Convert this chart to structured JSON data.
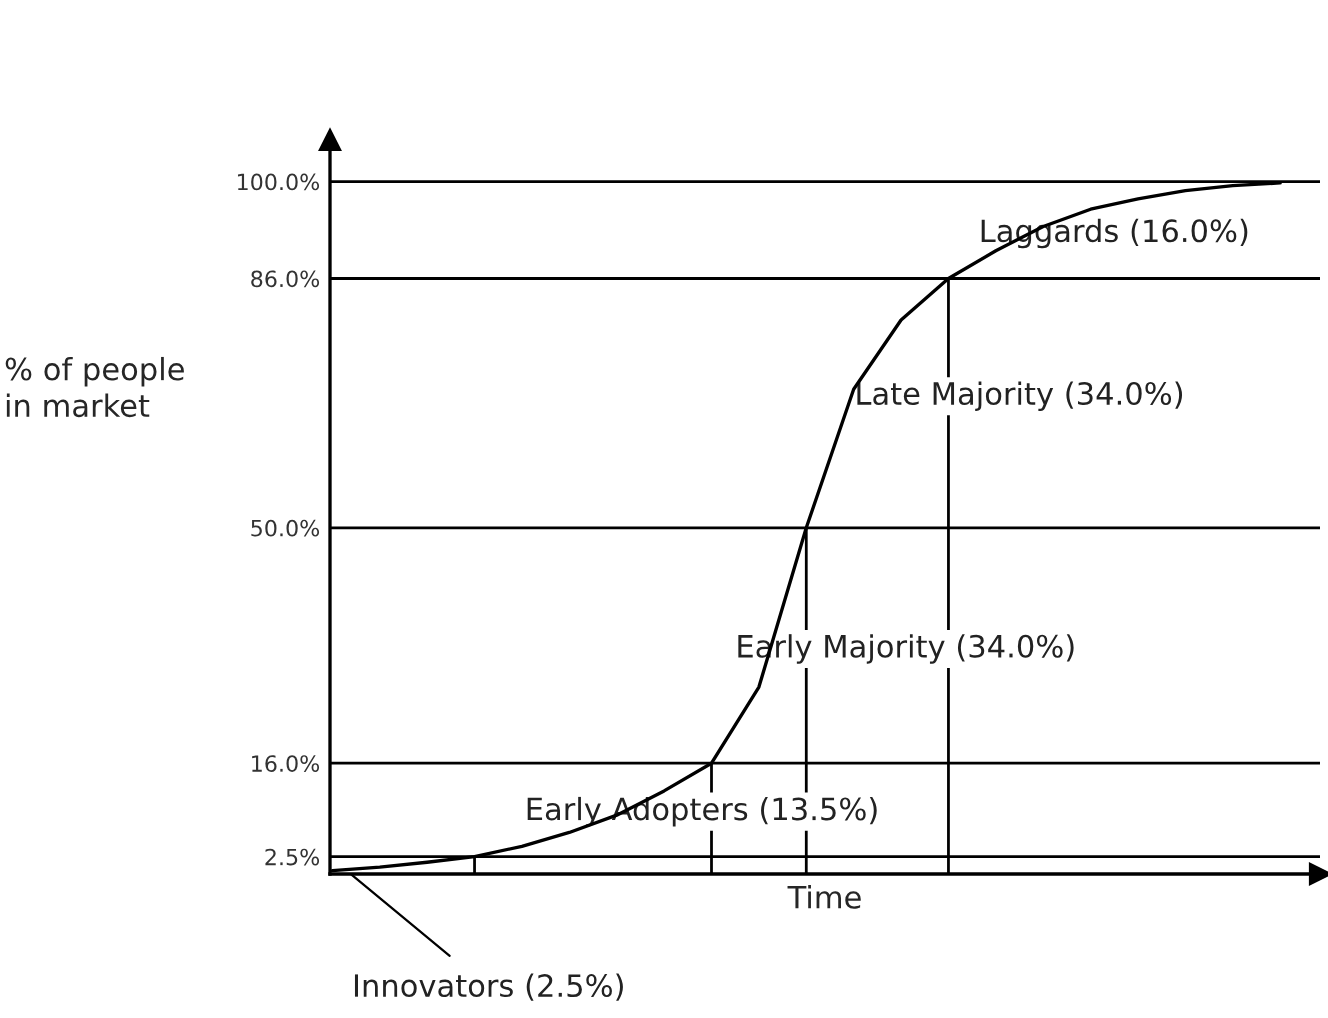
{
  "chart_data": {
    "type": "line",
    "xlabel": "Time",
    "ylabel": "% of people\nin market",
    "categories": [
      null,
      null,
      null,
      null,
      null,
      null,
      null,
      null,
      null,
      null,
      null,
      null,
      null,
      null,
      null,
      null,
      null,
      null,
      null,
      null,
      null
    ],
    "series": [
      {
        "color": "#000000",
        "values": [
          0.5,
          1,
          1.7,
          2.5,
          4,
          6,
          8.5,
          12,
          16,
          27,
          50,
          70,
          80,
          86,
          90,
          93.5,
          96,
          97.5,
          98.7,
          99.4,
          99.8
        ]
      }
    ],
    "ylim": [
      0,
      106
    ],
    "yticks": [
      {
        "value": 2.5,
        "label": "2.5%"
      },
      {
        "value": 16,
        "label": "16.0%"
      },
      {
        "value": 50,
        "label": "50.0%"
      },
      {
        "value": 86,
        "label": "86.0%"
      },
      {
        "value": 100,
        "label": "100.0%"
      }
    ],
    "grid": "y",
    "tick_labels": "y",
    "annotations": [
      "Laggards (16.0%)",
      "Late Majority (34.0%)",
      "Early Majority (34.0%)",
      "Early Adopters (13.5%)",
      "Innovators (2.5%)"
    ]
  }
}
